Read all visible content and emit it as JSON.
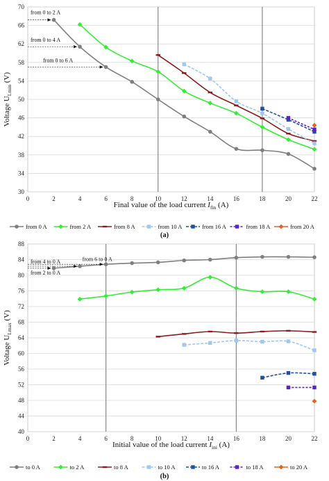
{
  "chart_data": [
    {
      "type": "line",
      "panel": "(a)",
      "x": [
        0,
        2,
        4,
        6,
        8,
        10,
        12,
        14,
        16,
        18,
        20,
        22
      ],
      "xlim": [
        0,
        22
      ],
      "ylim": [
        30,
        70
      ],
      "yticks": [
        30,
        34,
        38,
        42,
        46,
        50,
        54,
        58,
        62,
        66,
        70
      ],
      "xticks": [
        0,
        2,
        4,
        6,
        8,
        10,
        12,
        14,
        16,
        18,
        20,
        22
      ],
      "ylabel": "Voltage U",
      "ylabel_sub": "Lmin",
      "ylabel_unit": "(V)",
      "xlabel": "Final value of the load current",
      "xlabel_var": "I",
      "xlabel_sub": "fin",
      "xlabel_unit": "(A)",
      "series": [
        {
          "name": "from 0 A",
          "color": "#7f7f7f",
          "dash": "",
          "marker": "circle",
          "points": [
            [
              2,
              67.2
            ],
            [
              4,
              61.4
            ],
            [
              6,
              57.0
            ],
            [
              8,
              53.8
            ],
            [
              10,
              50.0
            ],
            [
              12,
              46.3
            ],
            [
              14,
              43.0
            ],
            [
              16,
              39.3
            ],
            [
              18,
              39.0
            ],
            [
              20,
              38.2
            ],
            [
              22,
              35.0
            ]
          ]
        },
        {
          "name": "from 2 A",
          "color": "#33ee33",
          "dash": "",
          "marker": "diamond",
          "points": [
            [
              4,
              66.2
            ],
            [
              6,
              61.3
            ],
            [
              8,
              58.3
            ],
            [
              10,
              56.0
            ],
            [
              12,
              51.8
            ],
            [
              14,
              49.2
            ],
            [
              16,
              47.0
            ],
            [
              18,
              44.0
            ],
            [
              20,
              41.3
            ],
            [
              22,
              39.2
            ]
          ]
        },
        {
          "name": "from 8 A",
          "color": "#8b1a1a",
          "dash": "",
          "marker": "dash",
          "points": [
            [
              10,
              59.6
            ],
            [
              12,
              55.7
            ],
            [
              14,
              51.5
            ],
            [
              16,
              48.7
            ],
            [
              18,
              45.9
            ],
            [
              20,
              42.6
            ],
            [
              22,
              41.0
            ]
          ]
        },
        {
          "name": "from 10 A",
          "color": "#9ec8ef",
          "dash": "4,2",
          "marker": "square",
          "points": [
            [
              12,
              57.6
            ],
            [
              14,
              54.5
            ],
            [
              16,
              49.6
            ],
            [
              18,
              47.0
            ],
            [
              20,
              43.6
            ],
            [
              22,
              40.5
            ]
          ]
        },
        {
          "name": "from 16 A",
          "color": "#1f4fa0",
          "dash": "4,2",
          "marker": "square",
          "points": [
            [
              18,
              48.0
            ],
            [
              20,
              45.6
            ],
            [
              22,
              43.0
            ]
          ]
        },
        {
          "name": "from 18 A",
          "color": "#5a1fd0",
          "dash": "3,2",
          "marker": "square",
          "points": [
            [
              20,
              46.0
            ],
            [
              22,
              43.5
            ]
          ]
        },
        {
          "name": "from 20 A",
          "color": "#e8601c",
          "dash": "",
          "marker": "diamond",
          "points": [
            [
              22,
              44.4
            ]
          ]
        }
      ],
      "annotations": [
        {
          "text": "from 0 to 2 A",
          "to_x": 2,
          "y": 67.2,
          "pos": "top-left"
        },
        {
          "text": "from 0 to 4 A",
          "to_x": 4,
          "y": 61.4,
          "pos": "left"
        },
        {
          "text": "from 0 to 6 A",
          "to_x": 6,
          "y": 57.0,
          "pos": "left"
        }
      ],
      "caption": "(a)"
    },
    {
      "type": "line",
      "panel": "(b)",
      "x": [
        0,
        2,
        4,
        6,
        8,
        10,
        12,
        14,
        16,
        18,
        20,
        22
      ],
      "xlim": [
        0,
        22
      ],
      "ylim": [
        40,
        88
      ],
      "yticks": [
        40,
        44,
        48,
        52,
        56,
        60,
        64,
        68,
        72,
        76,
        80,
        84,
        88
      ],
      "xticks": [
        0,
        2,
        4,
        6,
        8,
        10,
        12,
        14,
        16,
        18,
        20,
        22
      ],
      "ylabel": "Voltage U",
      "ylabel_sub": "Lmax",
      "ylabel_unit": "(V)",
      "xlabel": "Initial value of the load current",
      "xlabel_var": "I",
      "xlabel_sub": "ini",
      "xlabel_unit": "(A)",
      "series": [
        {
          "name": "to 0 A",
          "color": "#7f7f7f",
          "dash": "",
          "marker": "circle",
          "points": [
            [
              2,
              81.8
            ],
            [
              4,
              82.3
            ],
            [
              6,
              82.8
            ],
            [
              8,
              83.1
            ],
            [
              10,
              83.3
            ],
            [
              12,
              83.8
            ],
            [
              14,
              84.0
            ],
            [
              16,
              84.5
            ],
            [
              18,
              84.7
            ],
            [
              20,
              84.7
            ],
            [
              22,
              84.6
            ]
          ]
        },
        {
          "name": "to 2 A",
          "color": "#33ee33",
          "dash": "",
          "marker": "diamond",
          "points": [
            [
              4,
              73.9
            ],
            [
              6,
              74.7
            ],
            [
              8,
              75.7
            ],
            [
              10,
              76.3
            ],
            [
              12,
              76.7
            ],
            [
              14,
              79.5
            ],
            [
              16,
              76.7
            ],
            [
              18,
              75.8
            ],
            [
              20,
              75.8
            ],
            [
              22,
              73.9
            ]
          ]
        },
        {
          "name": "to 8 A",
          "color": "#8b1a1a",
          "dash": "",
          "marker": "dash",
          "points": [
            [
              10,
              64.3
            ],
            [
              12,
              65.0
            ],
            [
              14,
              65.6
            ],
            [
              16,
              65.2
            ],
            [
              18,
              65.6
            ],
            [
              20,
              65.8
            ],
            [
              22,
              65.5
            ]
          ]
        },
        {
          "name": "to 10 A",
          "color": "#9ec8ef",
          "dash": "4,2",
          "marker": "square",
          "points": [
            [
              12,
              62.2
            ],
            [
              14,
              62.7
            ],
            [
              16,
              63.3
            ],
            [
              18,
              63.0
            ],
            [
              20,
              63.1
            ],
            [
              22,
              60.8
            ]
          ]
        },
        {
          "name": "to 16 A",
          "color": "#1f4fa0",
          "dash": "4,2",
          "marker": "square",
          "points": [
            [
              18,
              53.8
            ],
            [
              20,
              55.0
            ],
            [
              22,
              54.8
            ]
          ]
        },
        {
          "name": "to 18 A",
          "color": "#5a1fd0",
          "dash": "3,2",
          "marker": "square",
          "points": [
            [
              20,
              51.3
            ],
            [
              22,
              51.3
            ]
          ]
        },
        {
          "name": "to 20 A",
          "color": "#e8601c",
          "dash": "",
          "marker": "diamond",
          "points": [
            [
              22,
              47.8
            ]
          ]
        }
      ],
      "annotations": [
        {
          "text": "from 4 to 0 A",
          "to_x": 4,
          "y": 82.3,
          "pos": "left"
        },
        {
          "text": "from 6 to 0 A",
          "to_x": 6,
          "y": 82.8,
          "pos": "top"
        },
        {
          "text": "from 2 to 0 A",
          "to_x": 2,
          "y": 81.8,
          "pos": "bottom"
        }
      ],
      "caption": "(b)"
    }
  ]
}
